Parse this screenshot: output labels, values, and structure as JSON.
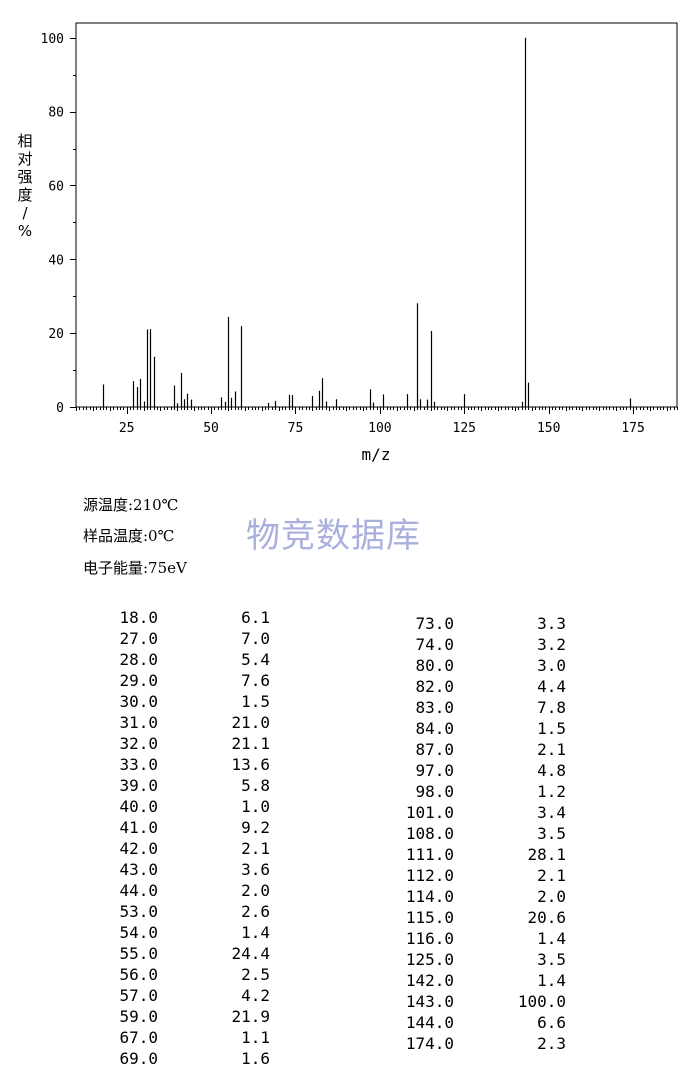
{
  "chart_data": {
    "type": "bar",
    "xlabel": "m/z",
    "ylabel": "相对强度/%",
    "xlim": [
      10,
      188
    ],
    "ylim": [
      0,
      104
    ],
    "xticks": [
      25,
      50,
      75,
      100,
      125,
      150,
      175
    ],
    "yticks": [
      0,
      20,
      40,
      60,
      80,
      100
    ],
    "grid": false,
    "x": [
      18,
      27,
      28,
      29,
      30,
      31,
      32,
      33,
      39,
      40,
      41,
      42,
      43,
      44,
      53,
      54,
      55,
      56,
      57,
      59,
      67,
      69,
      73,
      74,
      80,
      82,
      83,
      84,
      87,
      97,
      98,
      101,
      108,
      111,
      112,
      114,
      115,
      116,
      125,
      142,
      143,
      144,
      174
    ],
    "values": [
      6.1,
      7.0,
      5.4,
      7.6,
      1.5,
      21.0,
      21.1,
      13.6,
      5.8,
      1.0,
      9.2,
      2.1,
      3.6,
      2.0,
      2.6,
      1.4,
      24.4,
      2.5,
      4.2,
      21.9,
      1.1,
      1.6,
      3.3,
      3.2,
      3.0,
      4.4,
      7.8,
      1.5,
      2.1,
      4.8,
      1.2,
      3.4,
      3.5,
      28.1,
      2.1,
      2.0,
      20.6,
      1.4,
      3.5,
      1.4,
      100.0,
      6.6,
      2.3
    ]
  },
  "conditions": {
    "source_temp": "源温度:210℃",
    "sample_temp": "样品温度:0℃",
    "electron_energy": "电子能量:75eV"
  },
  "watermark": "物竞数据库",
  "peak_table": {
    "left": [
      [
        "18.0",
        "6.1"
      ],
      [
        "27.0",
        "7.0"
      ],
      [
        "28.0",
        "5.4"
      ],
      [
        "29.0",
        "7.6"
      ],
      [
        "30.0",
        "1.5"
      ],
      [
        "31.0",
        "21.0"
      ],
      [
        "32.0",
        "21.1"
      ],
      [
        "33.0",
        "13.6"
      ],
      [
        "39.0",
        "5.8"
      ],
      [
        "40.0",
        "1.0"
      ],
      [
        "41.0",
        "9.2"
      ],
      [
        "42.0",
        "2.1"
      ],
      [
        "43.0",
        "3.6"
      ],
      [
        "44.0",
        "2.0"
      ],
      [
        "53.0",
        "2.6"
      ],
      [
        "54.0",
        "1.4"
      ],
      [
        "55.0",
        "24.4"
      ],
      [
        "56.0",
        "2.5"
      ],
      [
        "57.0",
        "4.2"
      ],
      [
        "59.0",
        "21.9"
      ],
      [
        "67.0",
        "1.1"
      ],
      [
        "69.0",
        "1.6"
      ]
    ],
    "right": [
      [
        "73.0",
        "3.3"
      ],
      [
        "74.0",
        "3.2"
      ],
      [
        "80.0",
        "3.0"
      ],
      [
        "82.0",
        "4.4"
      ],
      [
        "83.0",
        "7.8"
      ],
      [
        "84.0",
        "1.5"
      ],
      [
        "87.0",
        "2.1"
      ],
      [
        "97.0",
        "4.8"
      ],
      [
        "98.0",
        "1.2"
      ],
      [
        "101.0",
        "3.4"
      ],
      [
        "108.0",
        "3.5"
      ],
      [
        "111.0",
        "28.1"
      ],
      [
        "112.0",
        "2.1"
      ],
      [
        "114.0",
        "2.0"
      ],
      [
        "115.0",
        "20.6"
      ],
      [
        "116.0",
        "1.4"
      ],
      [
        "125.0",
        "3.5"
      ],
      [
        "142.0",
        "1.4"
      ],
      [
        "143.0",
        "100.0"
      ],
      [
        "144.0",
        "6.6"
      ],
      [
        "174.0",
        "2.3"
      ]
    ]
  }
}
